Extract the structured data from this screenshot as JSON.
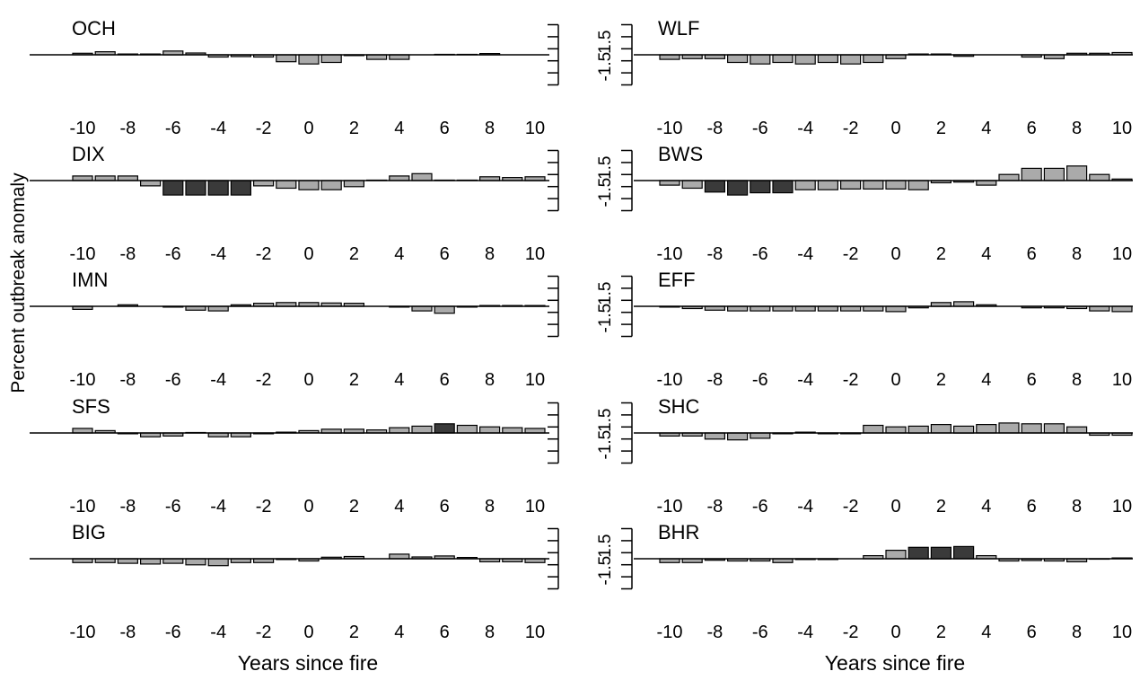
{
  "chart_data": {
    "type": "bar",
    "title": "",
    "ylabel": "Percent outbreak anomaly",
    "xlabel": "Years since fire",
    "x": [
      -10,
      -9,
      -8,
      -7,
      -6,
      -5,
      -4,
      -3,
      -2,
      -1,
      0,
      1,
      2,
      3,
      4,
      5,
      6,
      7,
      8,
      9,
      10
    ],
    "xticks": [
      -10,
      -8,
      -6,
      -4,
      -2,
      0,
      2,
      4,
      6,
      8,
      10
    ],
    "xtick_labels": [
      "-10",
      "-8",
      "-6",
      "-4",
      "-2",
      "0",
      "2",
      "4",
      "6",
      "8",
      "10"
    ],
    "ylim": [
      -1.5,
      1.5
    ],
    "yticks": [
      -1.5,
      1.5
    ],
    "ytick_labels": [
      "-1.5",
      "1.5"
    ],
    "colors": {
      "normal": "#aaaaaa",
      "significant": "#3a3a3a",
      "outline": "#000000"
    },
    "panels": [
      {
        "name": "OCH",
        "values": [
          0.1,
          0.2,
          0.05,
          0.05,
          0.25,
          0.12,
          -0.15,
          -0.12,
          -0.15,
          -0.45,
          -0.6,
          -0.5,
          -0.05,
          -0.3,
          -0.3,
          0,
          0.03,
          0.03,
          0.08,
          0,
          0
        ],
        "significant": []
      },
      {
        "name": "WLF",
        "values": [
          -0.3,
          -0.25,
          -0.25,
          -0.5,
          -0.6,
          -0.5,
          -0.6,
          -0.5,
          -0.6,
          -0.5,
          -0.25,
          0.05,
          0.05,
          -0.1,
          -0.02,
          0,
          -0.15,
          -0.25,
          0.1,
          0.1,
          0.15
        ],
        "significant": []
      },
      {
        "name": "DIX",
        "values": [
          0.3,
          0.3,
          0.3,
          -0.35,
          -0.95,
          -0.95,
          -0.95,
          -0.95,
          -0.35,
          -0.5,
          -0.6,
          -0.6,
          -0.4,
          0.03,
          0.3,
          0.45,
          0.03,
          0.03,
          0.25,
          0.2,
          0.25
        ],
        "significant": [
          -6,
          -5,
          -4,
          -3
        ]
      },
      {
        "name": "BWS",
        "values": [
          -0.3,
          -0.5,
          -0.75,
          -0.95,
          -0.8,
          -0.8,
          -0.6,
          -0.6,
          -0.55,
          -0.55,
          -0.55,
          -0.6,
          -0.15,
          -0.1,
          -0.3,
          0.4,
          0.8,
          0.8,
          0.95,
          0.4,
          0.1
        ],
        "significant": [
          -8,
          -7,
          -6,
          -5
        ]
      },
      {
        "name": "IMN",
        "values": [
          -0.2,
          0.02,
          0.1,
          -0.02,
          -0.05,
          -0.25,
          -0.3,
          0.1,
          0.2,
          0.25,
          0.25,
          0.22,
          0.2,
          0.02,
          -0.05,
          -0.3,
          -0.45,
          -0.05,
          0.05,
          0.05,
          0.05
        ],
        "significant": []
      },
      {
        "name": "EFF",
        "values": [
          -0.05,
          -0.15,
          -0.25,
          -0.3,
          -0.3,
          -0.3,
          -0.3,
          -0.3,
          -0.3,
          -0.3,
          -0.35,
          -0.1,
          0.25,
          0.3,
          0.1,
          -0.02,
          -0.1,
          -0.1,
          -0.15,
          -0.3,
          -0.35
        ],
        "significant": []
      },
      {
        "name": "SFS",
        "values": [
          0.3,
          0.15,
          -0.05,
          -0.25,
          -0.2,
          0.03,
          -0.25,
          -0.25,
          -0.05,
          0.05,
          0.15,
          0.25,
          0.25,
          0.2,
          0.35,
          0.45,
          0.6,
          0.5,
          0.4,
          0.35,
          0.3
        ],
        "significant": [
          6
        ]
      },
      {
        "name": "SHC",
        "values": [
          -0.2,
          -0.2,
          -0.4,
          -0.45,
          -0.35,
          -0.05,
          0.05,
          -0.05,
          -0.05,
          0.5,
          0.4,
          0.45,
          0.55,
          0.45,
          0.55,
          0.65,
          0.6,
          0.6,
          0.4,
          -0.15,
          -0.15
        ],
        "significant": []
      },
      {
        "name": "BIG",
        "values": [
          -0.25,
          -0.25,
          -0.3,
          -0.35,
          -0.3,
          -0.4,
          -0.45,
          -0.25,
          -0.25,
          -0.05,
          -0.15,
          0.1,
          0.15,
          0.02,
          0.3,
          0.12,
          0.18,
          0.08,
          -0.2,
          -0.2,
          -0.25
        ],
        "significant": []
      },
      {
        "name": "BHR",
        "values": [
          -0.25,
          -0.25,
          -0.1,
          -0.15,
          -0.15,
          -0.25,
          -0.05,
          -0.05,
          -0.02,
          0.2,
          0.55,
          0.75,
          0.75,
          0.8,
          0.2,
          -0.15,
          -0.12,
          -0.15,
          -0.2,
          -0.03,
          0.05
        ],
        "significant": [
          1,
          2,
          3
        ]
      }
    ]
  }
}
